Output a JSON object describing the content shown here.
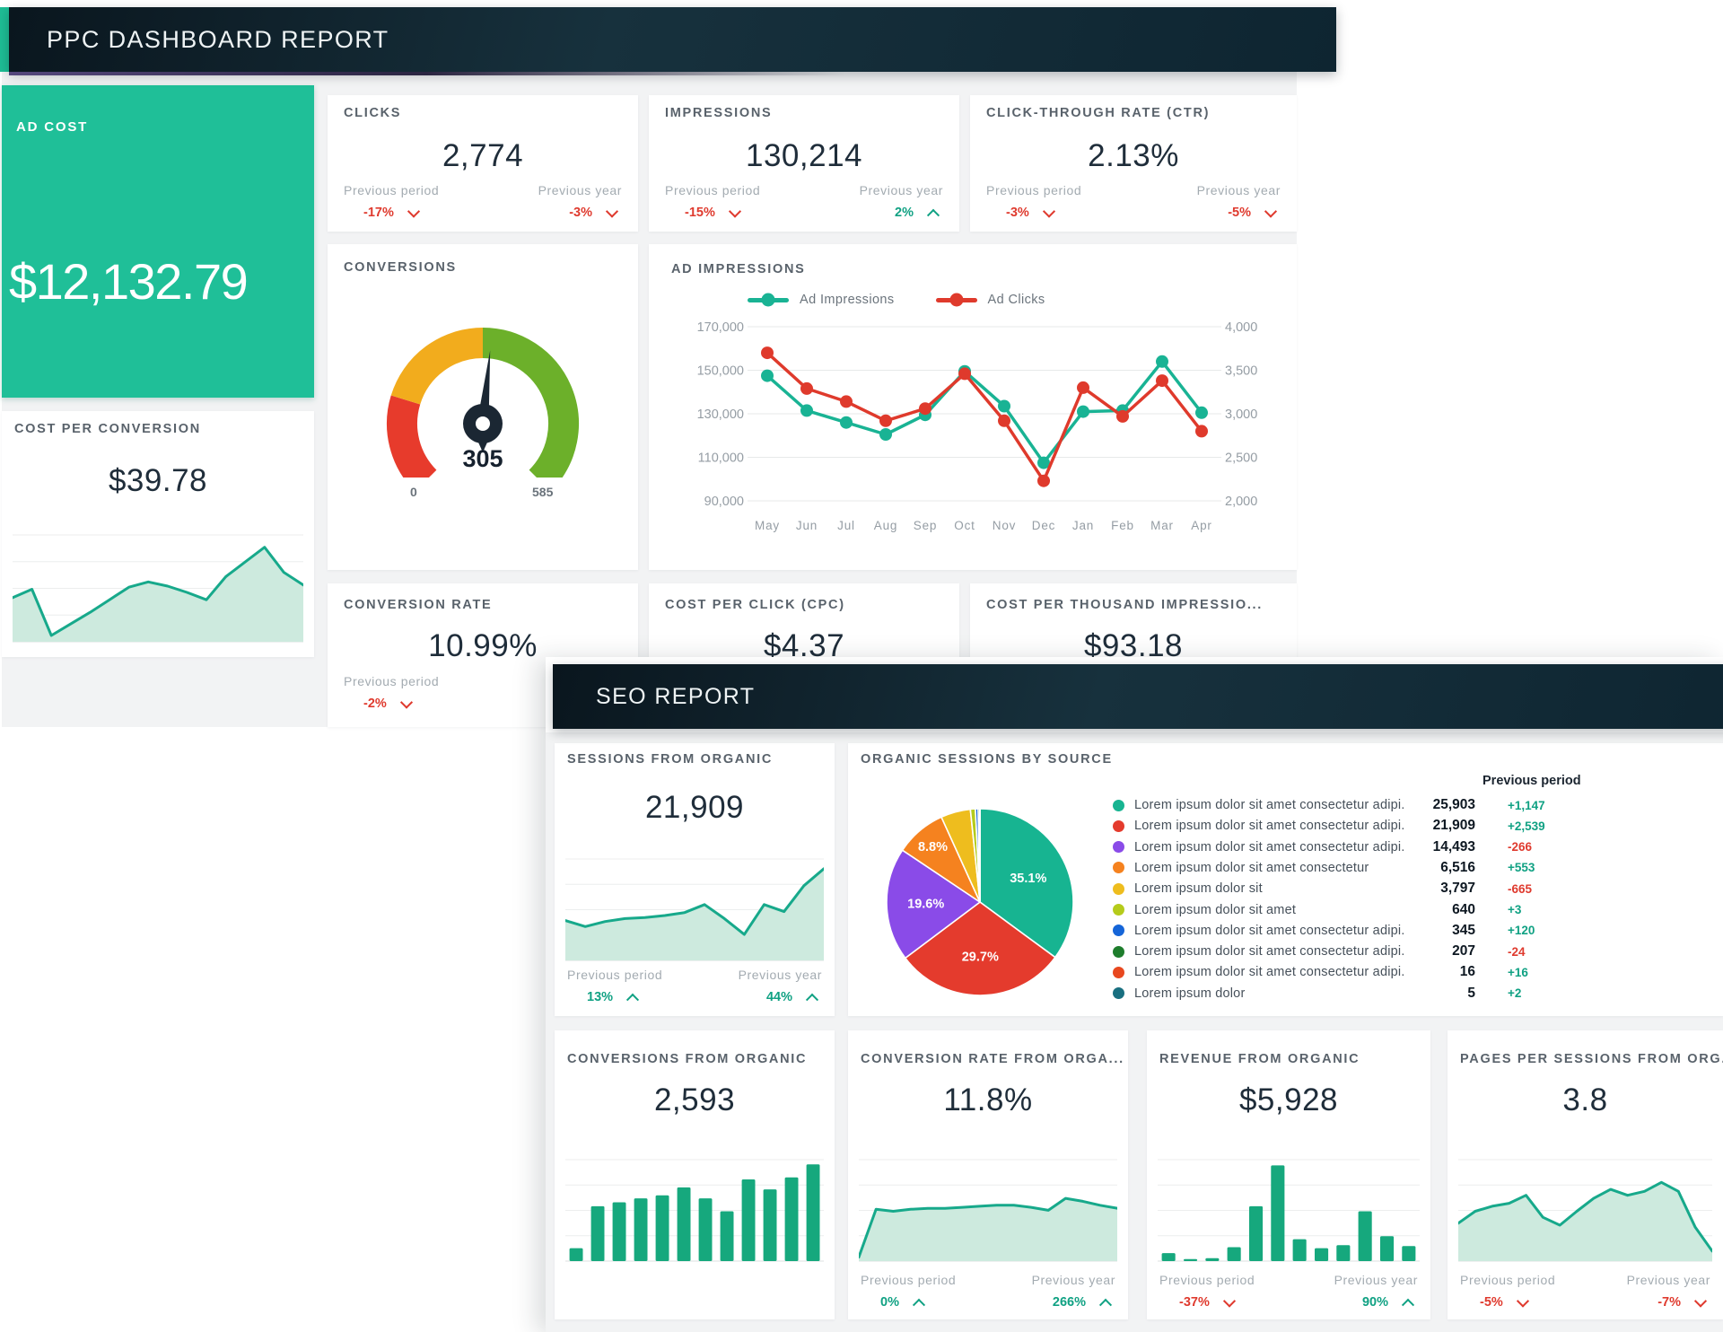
{
  "ppc": {
    "title": "PPC DASHBOARD REPORT",
    "ad_cost": {
      "label": "AD COST",
      "value": "$12,132.79"
    },
    "cost_per_conversion": {
      "label": "COST PER CONVERSION",
      "value": "$39.78"
    },
    "kpis": [
      {
        "label": "CLICKS",
        "value": "2,774",
        "prev_period_label": "Previous period",
        "prev_period_delta": "-17%",
        "prev_period_dir": "down",
        "prev_year_label": "Previous year",
        "prev_year_delta": "-3%",
        "prev_year_dir": "down"
      },
      {
        "label": "IMPRESSIONS",
        "value": "130,214",
        "prev_period_label": "Previous period",
        "prev_period_delta": "-15%",
        "prev_period_dir": "down",
        "prev_year_label": "Previous year",
        "prev_year_delta": "2%",
        "prev_year_dir": "up"
      },
      {
        "label": "CLICK-THROUGH RATE (CTR)",
        "value": "2.13%",
        "prev_period_label": "Previous period",
        "prev_period_delta": "-3%",
        "prev_period_dir": "down",
        "prev_year_label": "Previous year",
        "prev_year_delta": "-5%",
        "prev_year_dir": "down"
      }
    ],
    "conversions": {
      "label": "CONVERSIONS",
      "value": "305",
      "min_label": "0",
      "max_label": "585"
    },
    "ad_impressions": {
      "label": "AD IMPRESSIONS"
    },
    "conversion_rate": {
      "label": "CONVERSION RATE",
      "value": "10.99%",
      "prev_period_label": "Previous period",
      "prev_period_delta": "-2%",
      "prev_period_dir": "down"
    },
    "cpc": {
      "label": "COST PER CLICK (CPC)",
      "value": "$4.37"
    },
    "cpm": {
      "label": "COST PER THOUSAND IMPRESSIO...",
      "value": "$93.18"
    }
  },
  "seo": {
    "title": "SEO REPORT",
    "sessions": {
      "label": "SESSIONS FROM ORGANIC",
      "value": "21,909",
      "prev_period_label": "Previous period",
      "prev_period_delta": "13%",
      "prev_period_dir": "up",
      "prev_year_label": "Previous year",
      "prev_year_delta": "44%",
      "prev_year_dir": "up"
    },
    "sources": {
      "label": "ORGANIC SESSIONS BY SOURCE",
      "prev_header": "Previous period",
      "rows": [
        {
          "color": "#17b491",
          "name": "Lorem ipsum dolor sit amet consectetur adipi...",
          "value": "25,903",
          "delta": "+1,147",
          "dir": "up"
        },
        {
          "color": "#e43b2d",
          "name": "Lorem ipsum dolor sit amet consectetur adipi...",
          "value": "21,909",
          "delta": "+2,539",
          "dir": "up"
        },
        {
          "color": "#8a4be8",
          "name": "Lorem ipsum dolor sit amet consectetur adipi...",
          "value": "14,493",
          "delta": "-266",
          "dir": "down"
        },
        {
          "color": "#f5821f",
          "name": "Lorem ipsum dolor sit amet consectetur",
          "value": "6,516",
          "delta": "+553",
          "dir": "up"
        },
        {
          "color": "#eebd1e",
          "name": "Lorem ipsum dolor sit",
          "value": "3,797",
          "delta": "-665",
          "dir": "down"
        },
        {
          "color": "#b5cb1b",
          "name": "Lorem ipsum dolor sit amet",
          "value": "640",
          "delta": "+3",
          "dir": "up"
        },
        {
          "color": "#1565d8",
          "name": "Lorem ipsum dolor sit amet consectetur adipi...",
          "value": "345",
          "delta": "+120",
          "dir": "up"
        },
        {
          "color": "#1e7d2c",
          "name": "Lorem ipsum dolor sit amet consectetur adipi...",
          "value": "207",
          "delta": "-24",
          "dir": "down"
        },
        {
          "color": "#e8481f",
          "name": "Lorem ipsum dolor sit amet consectetur adipi...",
          "value": "16",
          "delta": "+16",
          "dir": "up"
        },
        {
          "color": "#196f80",
          "name": "Lorem ipsum dolor",
          "value": "5",
          "delta": "+2",
          "dir": "up"
        }
      ]
    },
    "bottom": [
      {
        "label": "CONVERSIONS FROM ORGANIC",
        "value": "2,593"
      },
      {
        "label": "CONVERSION RATE FROM ORGA...",
        "value": "11.8%",
        "prev_period_label": "Previous period",
        "prev_period_delta": "0%",
        "prev_period_dir": "up",
        "prev_year_label": "Previous year",
        "prev_year_delta": "266%",
        "prev_year_dir": "up"
      },
      {
        "label": "REVENUE FROM ORGANIC",
        "value": "$5,928",
        "prev_period_label": "Previous period",
        "prev_period_delta": "-37%",
        "prev_period_dir": "down",
        "prev_year_label": "Previous year",
        "prev_year_delta": "90%",
        "prev_year_dir": "up"
      },
      {
        "label": "PAGES PER SESSIONS FROM ORG...",
        "value": "3.8",
        "prev_period_label": "Previous period",
        "prev_period_delta": "-5%",
        "prev_period_dir": "down",
        "prev_year_label": "Previous year",
        "prev_year_delta": "-7%",
        "prev_year_dir": "down"
      }
    ]
  },
  "chart_data": [
    {
      "id": "ad_impressions",
      "type": "line",
      "title": "AD IMPRESSIONS",
      "x": [
        "May",
        "Jun",
        "Jul",
        "Aug",
        "Sep",
        "Oct",
        "Nov",
        "Dec",
        "Jan",
        "Feb",
        "Mar",
        "Apr"
      ],
      "series": [
        {
          "name": "Ad Impressions",
          "color": "#19b394",
          "axis": "left",
          "values": [
            147500,
            131500,
            126000,
            120500,
            129500,
            149500,
            133500,
            107500,
            131000,
            131500,
            154000,
            130500
          ]
        },
        {
          "name": "Ad Clicks",
          "color": "#df3a2c",
          "axis": "right",
          "values": [
            3700,
            3290,
            3140,
            2920,
            3060,
            3460,
            2920,
            2230,
            3300,
            2970,
            3380,
            2800
          ]
        }
      ],
      "y_left": {
        "min": 90000,
        "max": 170000,
        "ticks": [
          "170,000",
          "150,000",
          "130,000",
          "110,000",
          "90,000"
        ]
      },
      "y_right": {
        "min": 2000,
        "max": 4000,
        "ticks": [
          "4,000",
          "3,500",
          "3,000",
          "2,500",
          "2,000"
        ]
      },
      "grid": true,
      "legend": "top"
    },
    {
      "id": "cost_per_conversion_spark",
      "type": "area",
      "color": "#17a98b",
      "fill": "#cdeade",
      "values": [
        0.42,
        0.5,
        0.06,
        0.17,
        0.28,
        0.4,
        0.52,
        0.57,
        0.53,
        0.47,
        0.4,
        0.62,
        0.76,
        0.9,
        0.66,
        0.54
      ]
    },
    {
      "id": "sessions_spark",
      "type": "area",
      "color": "#17a98b",
      "fill": "#cdeade",
      "values": [
        0.4,
        0.34,
        0.39,
        0.42,
        0.43,
        0.45,
        0.48,
        0.56,
        0.42,
        0.26,
        0.56,
        0.49,
        0.75,
        0.92
      ]
    },
    {
      "id": "organic_sources_pie",
      "type": "pie",
      "values": [
        25903,
        21909,
        14493,
        6516,
        3797,
        640,
        345,
        207,
        16,
        5
      ],
      "colors": [
        "#17b491",
        "#e43b2d",
        "#8a4be8",
        "#f5821f",
        "#eebd1e",
        "#b5cb1b",
        "#1565d8",
        "#1e7d2c",
        "#e8481f",
        "#196f80"
      ],
      "labels": [
        "35.1%",
        "29.7%",
        "19.6%",
        "8.8%"
      ]
    },
    {
      "id": "conversions_gauge",
      "type": "gauge",
      "value": 305,
      "min": 0,
      "max": 585,
      "segments": [
        {
          "to": 0.23,
          "color": "#e73b2c"
        },
        {
          "to": 0.5,
          "color": "#f2ac1d"
        },
        {
          "to": 1,
          "color": "#6cb02a"
        }
      ]
    },
    {
      "id": "conversions_from_organic_bars",
      "type": "bar",
      "color": "#16a87d",
      "values": [
        0.13,
        0.55,
        0.59,
        0.63,
        0.66,
        0.74,
        0.63,
        0.5,
        0.82,
        0.72,
        0.84,
        0.97
      ]
    },
    {
      "id": "conversion_rate_area",
      "type": "area",
      "color": "#17a98b",
      "fill": "#cdeade",
      "values": [
        0.04,
        0.52,
        0.5,
        0.52,
        0.53,
        0.53,
        0.54,
        0.55,
        0.56,
        0.56,
        0.54,
        0.51,
        0.63,
        0.6,
        0.56,
        0.53
      ]
    },
    {
      "id": "revenue_bars",
      "type": "bar",
      "color": "#16a87d",
      "values": [
        0.08,
        0.02,
        0.03,
        0.14,
        0.55,
        0.96,
        0.22,
        0.13,
        0.16,
        0.5,
        0.25,
        0.15
      ]
    },
    {
      "id": "pages_per_session_area",
      "type": "area",
      "color": "#17a98b",
      "fill": "#cdeade",
      "values": [
        0.38,
        0.5,
        0.55,
        0.58,
        0.66,
        0.44,
        0.36,
        0.5,
        0.63,
        0.72,
        0.66,
        0.7,
        0.79,
        0.7,
        0.34,
        0.1
      ]
    }
  ]
}
